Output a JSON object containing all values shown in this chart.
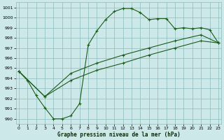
{
  "xlabel": "Graphe pression niveau de la mer (hPa)",
  "bg_color": "#cde8e8",
  "grid_color": "#8bbcbc",
  "line_color": "#1a5c1a",
  "ylim": [
    989.5,
    1001.5
  ],
  "xlim": [
    -0.3,
    23.3
  ],
  "yticks": [
    990,
    991,
    992,
    993,
    994,
    995,
    996,
    997,
    998,
    999,
    1000,
    1001
  ],
  "xticks": [
    0,
    1,
    2,
    3,
    4,
    5,
    6,
    7,
    8,
    9,
    10,
    11,
    12,
    13,
    14,
    15,
    16,
    17,
    18,
    19,
    20,
    21,
    22,
    23
  ],
  "series1_x": [
    0,
    1,
    2,
    3,
    4,
    5,
    6,
    7,
    8,
    9,
    10,
    11,
    12,
    13,
    14,
    15,
    16,
    17,
    18,
    19,
    20,
    21,
    22,
    23
  ],
  "series1_y": [
    994.7,
    993.8,
    992.3,
    991.1,
    990.0,
    990.0,
    990.3,
    991.5,
    997.3,
    998.7,
    999.8,
    1000.6,
    1000.9,
    1000.9,
    1000.5,
    999.8,
    999.9,
    999.9,
    998.9,
    999.0,
    998.9,
    999.0,
    998.8,
    997.5
  ],
  "series2_x": [
    0,
    3,
    6,
    9,
    12,
    15,
    18,
    21,
    23
  ],
  "series2_y": [
    994.7,
    992.2,
    993.8,
    994.8,
    995.5,
    996.3,
    997.0,
    997.7,
    997.5
  ],
  "series3_x": [
    0,
    3,
    6,
    9,
    12,
    15,
    18,
    21,
    23
  ],
  "series3_y": [
    994.7,
    992.2,
    994.5,
    995.5,
    996.3,
    997.0,
    997.7,
    998.3,
    997.5
  ]
}
